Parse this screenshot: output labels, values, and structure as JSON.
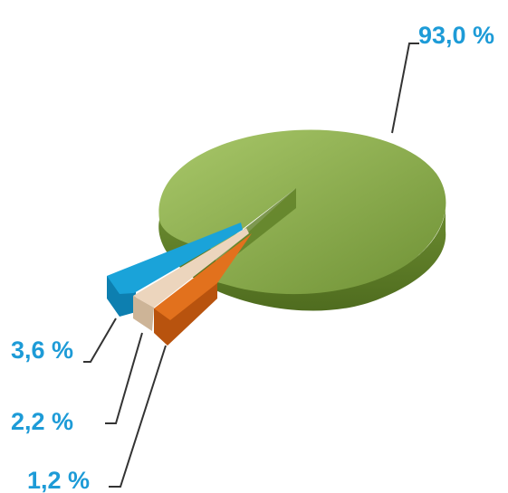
{
  "chart_data": {
    "type": "pie",
    "style": "3d-exploded",
    "slices": [
      {
        "value": 93.0,
        "label": "93,0 %",
        "color": "#7ea143"
      },
      {
        "value": 1.2,
        "label": "1,2 %",
        "color": "#e2711d"
      },
      {
        "value": 2.2,
        "label": "2,2 %",
        "color": "#ecd5bd"
      },
      {
        "value": 3.6,
        "label": "3,6 %",
        "color": "#1aa3d9"
      }
    ],
    "label_color": "#1d9bd7",
    "leader_color": "#333333"
  }
}
